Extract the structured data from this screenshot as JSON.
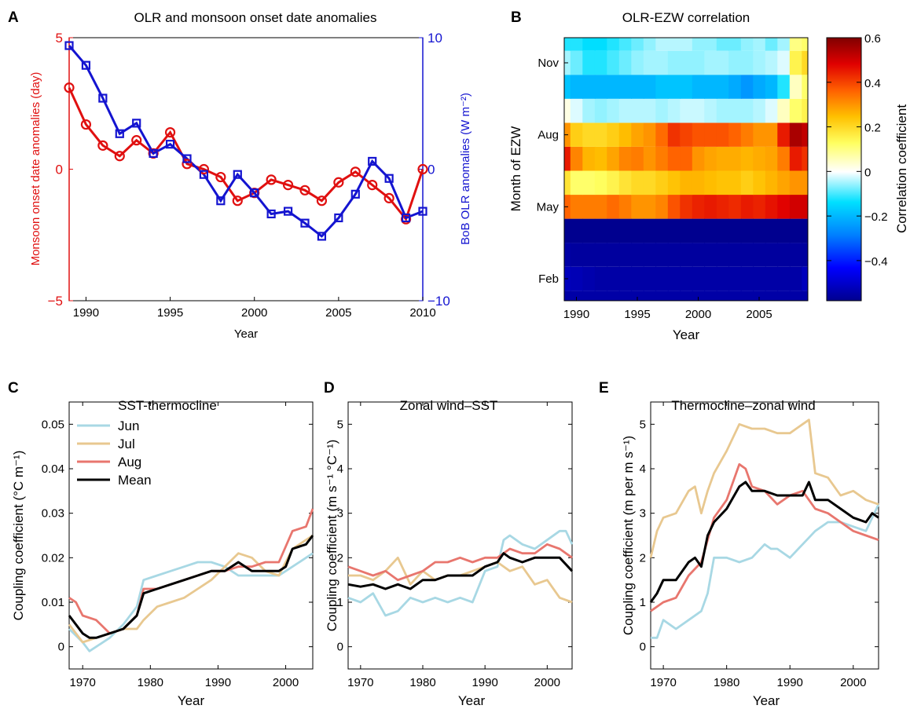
{
  "colors": {
    "red": "#e01010",
    "blue": "#1414d0",
    "jun": "#a8d8e4",
    "jul": "#e8c890",
    "aug": "#e8766e",
    "mean": "#000000"
  },
  "chart_data": [
    {
      "panel": "A",
      "type": "line",
      "title": "OLR and monsoon onset date anomalies",
      "xlabel": "Year",
      "ylabel": "Monsoon onset date anomalies (day)",
      "y2label": "BoB OLR anomalies (W m⁻²)",
      "xlim": [
        1989,
        2010
      ],
      "ylim": [
        -5,
        5
      ],
      "y2lim": [
        -10,
        10
      ],
      "xticks": [
        1990,
        1995,
        2000,
        2005,
        2010
      ],
      "yticks": [
        -5,
        0,
        5
      ],
      "y2ticks": [
        -10,
        0,
        10
      ],
      "x": [
        1989,
        1990,
        1991,
        1992,
        1993,
        1994,
        1995,
        1996,
        1997,
        1998,
        1999,
        2000,
        2001,
        2002,
        2003,
        2004,
        2005,
        2006,
        2007,
        2008,
        2009,
        2010
      ],
      "series": [
        {
          "axis": "left",
          "marker": "circle",
          "values": [
            3.1,
            1.7,
            0.9,
            0.5,
            1.1,
            0.6,
            1.4,
            0.2,
            0.0,
            -0.3,
            -1.2,
            -0.9,
            -0.4,
            -0.6,
            -0.8,
            -1.2,
            -0.5,
            -0.1,
            -0.6,
            -1.1,
            -1.9,
            0.0
          ]
        },
        {
          "axis": "right",
          "marker": "square",
          "values": [
            9.4,
            7.9,
            5.4,
            2.7,
            3.5,
            1.2,
            1.9,
            0.8,
            -0.4,
            -2.4,
            -0.4,
            -1.8,
            -3.4,
            -3.2,
            -4.1,
            -5.1,
            -3.7,
            -1.9,
            0.6,
            -0.7,
            -3.7,
            -3.2
          ]
        }
      ]
    },
    {
      "panel": "B",
      "type": "heatmap",
      "title": "OLR-EZW correlation",
      "xlabel": "Year",
      "ylabel": "Month of EZW",
      "colorbar_label": "Correlation coefficient",
      "xlim": [
        1989,
        2009
      ],
      "xticks": [
        1990,
        1995,
        2000,
        2005
      ],
      "yticks": [
        "Feb",
        "May",
        "Aug",
        "Nov"
      ],
      "clim": [
        -0.58,
        0.6
      ],
      "cticks": [
        -0.4,
        -0.2,
        0,
        0.2,
        0.4,
        0.6
      ],
      "years": [
        1989,
        1990,
        1991,
        1992,
        1993,
        1994,
        1995,
        1996,
        1997,
        1998,
        1999,
        2000,
        2001,
        2002,
        2003,
        2004,
        2005,
        2006,
        2007,
        2008,
        2009
      ],
      "months": [
        "Jan",
        "Feb",
        "Mar",
        "Apr",
        "May",
        "Jun",
        "Jul",
        "Aug",
        "Sep",
        "Oct",
        "Nov",
        "Dec"
      ],
      "values": [
        [
          -0.55,
          -0.55,
          -0.55,
          -0.55,
          -0.55,
          -0.55,
          -0.55,
          -0.55,
          -0.55,
          -0.55,
          -0.55,
          -0.55,
          -0.55,
          -0.55,
          -0.55,
          -0.55,
          -0.55,
          -0.55,
          -0.55,
          -0.55,
          -0.55
        ],
        [
          -0.52,
          -0.53,
          -0.54,
          -0.55,
          -0.55,
          -0.55,
          -0.55,
          -0.55,
          -0.55,
          -0.55,
          -0.55,
          -0.55,
          -0.55,
          -0.55,
          -0.55,
          -0.55,
          -0.55,
          -0.55,
          -0.55,
          -0.55,
          -0.52
        ],
        [
          -0.55,
          -0.56,
          -0.56,
          -0.56,
          -0.56,
          -0.56,
          -0.56,
          -0.56,
          -0.56,
          -0.56,
          -0.56,
          -0.56,
          -0.56,
          -0.56,
          -0.56,
          -0.56,
          -0.56,
          -0.56,
          -0.56,
          -0.56,
          -0.56
        ],
        [
          -0.58,
          -0.58,
          -0.58,
          -0.58,
          -0.58,
          -0.58,
          -0.58,
          -0.58,
          -0.58,
          -0.58,
          -0.58,
          -0.58,
          -0.58,
          -0.58,
          -0.58,
          -0.58,
          -0.58,
          -0.58,
          -0.58,
          -0.58,
          -0.58
        ],
        [
          0.36,
          0.33,
          0.33,
          0.33,
          0.35,
          0.33,
          0.3,
          0.3,
          0.32,
          0.38,
          0.42,
          0.44,
          0.45,
          0.44,
          0.43,
          0.45,
          0.44,
          0.46,
          0.48,
          0.5,
          0.5
        ],
        [
          0.18,
          0.12,
          0.12,
          0.13,
          0.15,
          0.18,
          0.2,
          0.2,
          0.22,
          0.24,
          0.26,
          0.26,
          0.25,
          0.24,
          0.24,
          0.22,
          0.24,
          0.26,
          0.28,
          0.3,
          0.3
        ],
        [
          0.45,
          0.32,
          0.26,
          0.25,
          0.28,
          0.32,
          0.33,
          0.3,
          0.33,
          0.36,
          0.36,
          0.3,
          0.28,
          0.27,
          0.27,
          0.26,
          0.27,
          0.28,
          0.33,
          0.45,
          0.42
        ],
        [
          0.3,
          0.22,
          0.2,
          0.2,
          0.22,
          0.25,
          0.28,
          0.3,
          0.35,
          0.42,
          0.4,
          0.38,
          0.38,
          0.38,
          0.36,
          0.33,
          0.3,
          0.3,
          0.45,
          0.55,
          0.52
        ],
        [
          0.02,
          -0.02,
          -0.05,
          -0.06,
          -0.05,
          -0.04,
          -0.04,
          -0.04,
          -0.05,
          -0.04,
          -0.03,
          -0.03,
          -0.04,
          -0.05,
          -0.05,
          -0.05,
          -0.04,
          -0.02,
          0.05,
          0.12,
          0.15
        ],
        [
          -0.18,
          -0.2,
          -0.2,
          -0.2,
          -0.2,
          -0.2,
          -0.2,
          -0.2,
          -0.18,
          -0.18,
          -0.18,
          -0.2,
          -0.2,
          -0.2,
          -0.22,
          -0.25,
          -0.22,
          -0.2,
          -0.12,
          0.05,
          0.12
        ],
        [
          -0.05,
          -0.08,
          -0.12,
          -0.12,
          -0.1,
          -0.08,
          -0.06,
          -0.05,
          -0.05,
          -0.06,
          -0.06,
          -0.06,
          -0.05,
          -0.05,
          -0.06,
          -0.06,
          -0.05,
          -0.04,
          -0.02,
          0.15,
          0.2
        ],
        [
          -0.12,
          -0.12,
          -0.14,
          -0.14,
          -0.12,
          -0.1,
          -0.08,
          -0.06,
          -0.04,
          -0.04,
          -0.04,
          -0.06,
          -0.06,
          -0.08,
          -0.08,
          -0.06,
          -0.05,
          -0.08,
          -0.05,
          0.1,
          0.12
        ]
      ]
    },
    {
      "panel": "C",
      "type": "line",
      "title": "SST-thermocline",
      "xlabel": "Year",
      "ylabel": "Coupling coefficient (°C m⁻¹)",
      "xlim": [
        1968,
        2004
      ],
      "ylim": [
        -0.005,
        0.055
      ],
      "xticks": [
        1970,
        1980,
        1990,
        2000
      ],
      "yticks": [
        0,
        0.01,
        0.02,
        0.03,
        0.04,
        0.05
      ],
      "legend": {
        "position": "top-left"
      },
      "series": [
        {
          "name": "Jun",
          "color": "jun",
          "x": [
            1968,
            1970,
            1971,
            1972,
            1974,
            1976,
            1978,
            1979,
            1981,
            1983,
            1985,
            1987,
            1989,
            1991,
            1993,
            1995,
            1997,
            1999,
            2001,
            2004
          ],
          "values": [
            0.004,
            0.001,
            -0.001,
            0.0,
            0.002,
            0.005,
            0.009,
            0.015,
            0.016,
            0.017,
            0.018,
            0.019,
            0.019,
            0.018,
            0.016,
            0.016,
            0.016,
            0.016,
            0.018,
            0.021
          ]
        },
        {
          "name": "Jul",
          "color": "jul",
          "x": [
            1968,
            1970,
            1972,
            1974,
            1976,
            1978,
            1979,
            1981,
            1983,
            1985,
            1987,
            1989,
            1991,
            1993,
            1995,
            1997,
            1999,
            2001,
            2004
          ],
          "values": [
            0.005,
            0.001,
            0.002,
            0.003,
            0.004,
            0.004,
            0.006,
            0.009,
            0.01,
            0.011,
            0.013,
            0.015,
            0.018,
            0.021,
            0.02,
            0.017,
            0.016,
            0.022,
            0.025
          ]
        },
        {
          "name": "Aug",
          "color": "aug",
          "x": [
            1968,
            1969,
            1970,
            1972,
            1974,
            1976,
            1978,
            1979,
            1981,
            1983,
            1985,
            1987,
            1989,
            1991,
            1993,
            1995,
            1997,
            1999,
            2001,
            2003,
            2004
          ],
          "values": [
            0.011,
            0.01,
            0.007,
            0.006,
            0.003,
            0.004,
            0.007,
            0.013,
            0.013,
            0.014,
            0.015,
            0.016,
            0.017,
            0.017,
            0.018,
            0.018,
            0.019,
            0.019,
            0.026,
            0.027,
            0.031
          ]
        },
        {
          "name": "Mean",
          "color": "mean",
          "x": [
            1968,
            1970,
            1971,
            1972,
            1974,
            1976,
            1978,
            1979,
            1981,
            1983,
            1985,
            1987,
            1989,
            1991,
            1993,
            1995,
            1997,
            1999,
            2000,
            2001,
            2003,
            2004
          ],
          "values": [
            0.007,
            0.003,
            0.002,
            0.002,
            0.003,
            0.004,
            0.007,
            0.012,
            0.013,
            0.014,
            0.015,
            0.016,
            0.017,
            0.017,
            0.019,
            0.017,
            0.017,
            0.017,
            0.018,
            0.022,
            0.023,
            0.025
          ]
        }
      ]
    },
    {
      "panel": "D",
      "type": "line",
      "title": "Zonal wind–SST",
      "xlabel": "Year",
      "ylabel": "Coupling coefficient (m s⁻¹ °C⁻¹)",
      "xlim": [
        1968,
        2004
      ],
      "ylim": [
        -0.5,
        5.5
      ],
      "xticks": [
        1970,
        1980,
        1990,
        2000
      ],
      "yticks": [
        0,
        1,
        2,
        3,
        4,
        5
      ],
      "series": [
        {
          "name": "Jun",
          "color": "jun",
          "x": [
            1968,
            1970,
            1972,
            1974,
            1976,
            1978,
            1980,
            1982,
            1984,
            1986,
            1988,
            1990,
            1992,
            1993,
            1994,
            1996,
            1998,
            2000,
            2002,
            2003,
            2004
          ],
          "values": [
            1.1,
            1.0,
            1.2,
            0.7,
            0.8,
            1.1,
            1.0,
            1.1,
            1.0,
            1.1,
            1.0,
            1.7,
            1.8,
            2.4,
            2.5,
            2.3,
            2.2,
            2.4,
            2.6,
            2.6,
            2.3
          ]
        },
        {
          "name": "Jul",
          "color": "jul",
          "x": [
            1968,
            1970,
            1972,
            1974,
            1976,
            1978,
            1980,
            1982,
            1984,
            1986,
            1988,
            1990,
            1992,
            1994,
            1996,
            1998,
            2000,
            2002,
            2004
          ],
          "values": [
            1.6,
            1.6,
            1.5,
            1.7,
            2.0,
            1.4,
            1.7,
            1.5,
            1.6,
            1.6,
            1.7,
            1.8,
            1.9,
            1.7,
            1.8,
            1.4,
            1.5,
            1.1,
            1.0
          ]
        },
        {
          "name": "Aug",
          "color": "aug",
          "x": [
            1968,
            1970,
            1972,
            1974,
            1976,
            1978,
            1980,
            1982,
            1984,
            1986,
            1988,
            1990,
            1992,
            1994,
            1996,
            1998,
            2000,
            2002,
            2004
          ],
          "values": [
            1.8,
            1.7,
            1.6,
            1.7,
            1.5,
            1.6,
            1.7,
            1.9,
            1.9,
            2.0,
            1.9,
            2.0,
            2.0,
            2.2,
            2.1,
            2.1,
            2.3,
            2.2,
            2.0
          ]
        },
        {
          "name": "Mean",
          "color": "mean",
          "x": [
            1968,
            1970,
            1972,
            1974,
            1976,
            1978,
            1980,
            1982,
            1984,
            1986,
            1988,
            1990,
            1992,
            1993,
            1994,
            1996,
            1998,
            2000,
            2002,
            2004
          ],
          "values": [
            1.4,
            1.35,
            1.4,
            1.3,
            1.4,
            1.3,
            1.5,
            1.5,
            1.6,
            1.6,
            1.6,
            1.8,
            1.9,
            2.1,
            2.0,
            1.9,
            2.0,
            2.0,
            2.0,
            1.7
          ]
        }
      ]
    },
    {
      "panel": "E",
      "type": "line",
      "title": "Thermocline–zonal wind",
      "xlabel": "Year",
      "ylabel": "Coupling coefficient (m per m s⁻¹)",
      "xlim": [
        1968,
        2004
      ],
      "ylim": [
        -0.5,
        5.5
      ],
      "xticks": [
        1970,
        1980,
        1990,
        2000
      ],
      "yticks": [
        0,
        1,
        2,
        3,
        4,
        5
      ],
      "series": [
        {
          "name": "Jun",
          "color": "jun",
          "x": [
            1968,
            1969,
            1970,
            1972,
            1974,
            1976,
            1977,
            1978,
            1980,
            1982,
            1984,
            1986,
            1987,
            1988,
            1990,
            1992,
            1994,
            1996,
            1998,
            2000,
            2002,
            2004
          ],
          "values": [
            0.2,
            0.2,
            0.6,
            0.4,
            0.6,
            0.8,
            1.2,
            2.0,
            2.0,
            1.9,
            2.0,
            2.3,
            2.2,
            2.2,
            2.0,
            2.3,
            2.6,
            2.8,
            2.8,
            2.7,
            2.6,
            3.2
          ]
        },
        {
          "name": "Jul",
          "color": "jul",
          "x": [
            1968,
            1969,
            1970,
            1972,
            1974,
            1975,
            1976,
            1977,
            1978,
            1980,
            1982,
            1984,
            1986,
            1988,
            1990,
            1992,
            1993,
            1994,
            1996,
            1998,
            2000,
            2002,
            2004
          ],
          "values": [
            2.0,
            2.6,
            2.9,
            3.0,
            3.5,
            3.6,
            3.0,
            3.5,
            3.9,
            4.4,
            5.0,
            4.9,
            4.9,
            4.8,
            4.8,
            5.0,
            5.1,
            3.9,
            3.8,
            3.4,
            3.5,
            3.3,
            3.2
          ]
        },
        {
          "name": "Aug",
          "color": "aug",
          "x": [
            1968,
            1970,
            1972,
            1974,
            1976,
            1978,
            1980,
            1982,
            1983,
            1984,
            1986,
            1988,
            1990,
            1992,
            1994,
            1996,
            1998,
            2000,
            2002,
            2004
          ],
          "values": [
            0.8,
            1.0,
            1.1,
            1.6,
            1.9,
            2.9,
            3.3,
            4.1,
            4.0,
            3.6,
            3.5,
            3.2,
            3.4,
            3.5,
            3.1,
            3.0,
            2.8,
            2.6,
            2.5,
            2.4
          ]
        },
        {
          "name": "Mean",
          "color": "mean",
          "x": [
            1968,
            1969,
            1970,
            1972,
            1974,
            1975,
            1976,
            1977,
            1978,
            1980,
            1982,
            1983,
            1984,
            1986,
            1988,
            1990,
            1992,
            1993,
            1994,
            1996,
            1998,
            2000,
            2002,
            2003,
            2004
          ],
          "values": [
            1.0,
            1.2,
            1.5,
            1.5,
            1.9,
            2.0,
            1.8,
            2.5,
            2.8,
            3.1,
            3.6,
            3.7,
            3.5,
            3.5,
            3.4,
            3.4,
            3.4,
            3.7,
            3.3,
            3.3,
            3.1,
            2.9,
            2.8,
            3.0,
            2.9
          ]
        }
      ]
    }
  ]
}
